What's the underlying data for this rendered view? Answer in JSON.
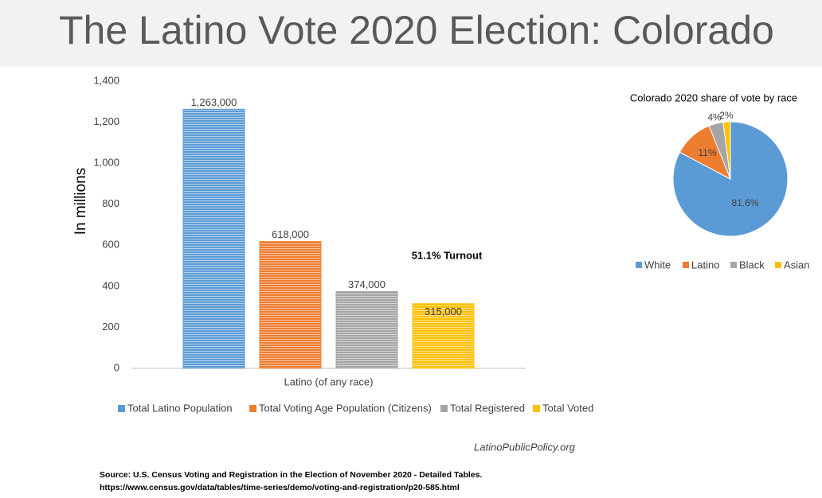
{
  "title": "The Latino Vote 2020 Election: Colorado",
  "credit": "LatinoPublicPolicy.org",
  "source": [
    "Source: U.S. Census  Voting and Registration in the Election of November 2020 - Detailed Tables.",
    "https://www.census.gov/data/tables/time-series/demo/voting-and-registration/p20-585.html"
  ],
  "chart_data": [
    {
      "type": "bar",
      "y_label": "In millions",
      "categories": [
        "Latino (of any race)"
      ],
      "series": [
        {
          "name": "Total Latino Population",
          "color": "#5b9bd5",
          "values": [
            1263
          ],
          "value_labels": [
            "1,263,000"
          ]
        },
        {
          "name": "Total Voting Age Population (Citizens)",
          "color": "#ed7d31",
          "values": [
            618
          ],
          "value_labels": [
            "618,000"
          ]
        },
        {
          "name": "Total Registered",
          "color": "#a5a5a5",
          "values": [
            374
          ],
          "value_labels": [
            "374,000"
          ]
        },
        {
          "name": "Total Voted",
          "color": "#ffc000",
          "values": [
            315
          ],
          "value_labels": [
            "315,000"
          ]
        }
      ],
      "annotation": "51.1% Turnout",
      "ylim": [
        0,
        1400
      ],
      "yticks": [
        0,
        200,
        400,
        600,
        800,
        {
          "value": 1000,
          "label": "1,000"
        },
        {
          "value": 1200,
          "label": "1,200"
        },
        {
          "value": 1400,
          "label": "1,400"
        }
      ],
      "grid": false,
      "legend": "bottom"
    },
    {
      "type": "pie",
      "title": "Colorado 2020 share of vote by race",
      "categories": [
        "White",
        "Latino",
        "Black",
        "Asian"
      ],
      "values": [
        81.6,
        11,
        4,
        2
      ],
      "value_labels": [
        "81.6%",
        "11%",
        "4%",
        "2%"
      ],
      "colors": [
        "#5b9bd5",
        "#ed7d31",
        "#a5a5a5",
        "#ffc000"
      ],
      "legend": "bottom"
    }
  ]
}
